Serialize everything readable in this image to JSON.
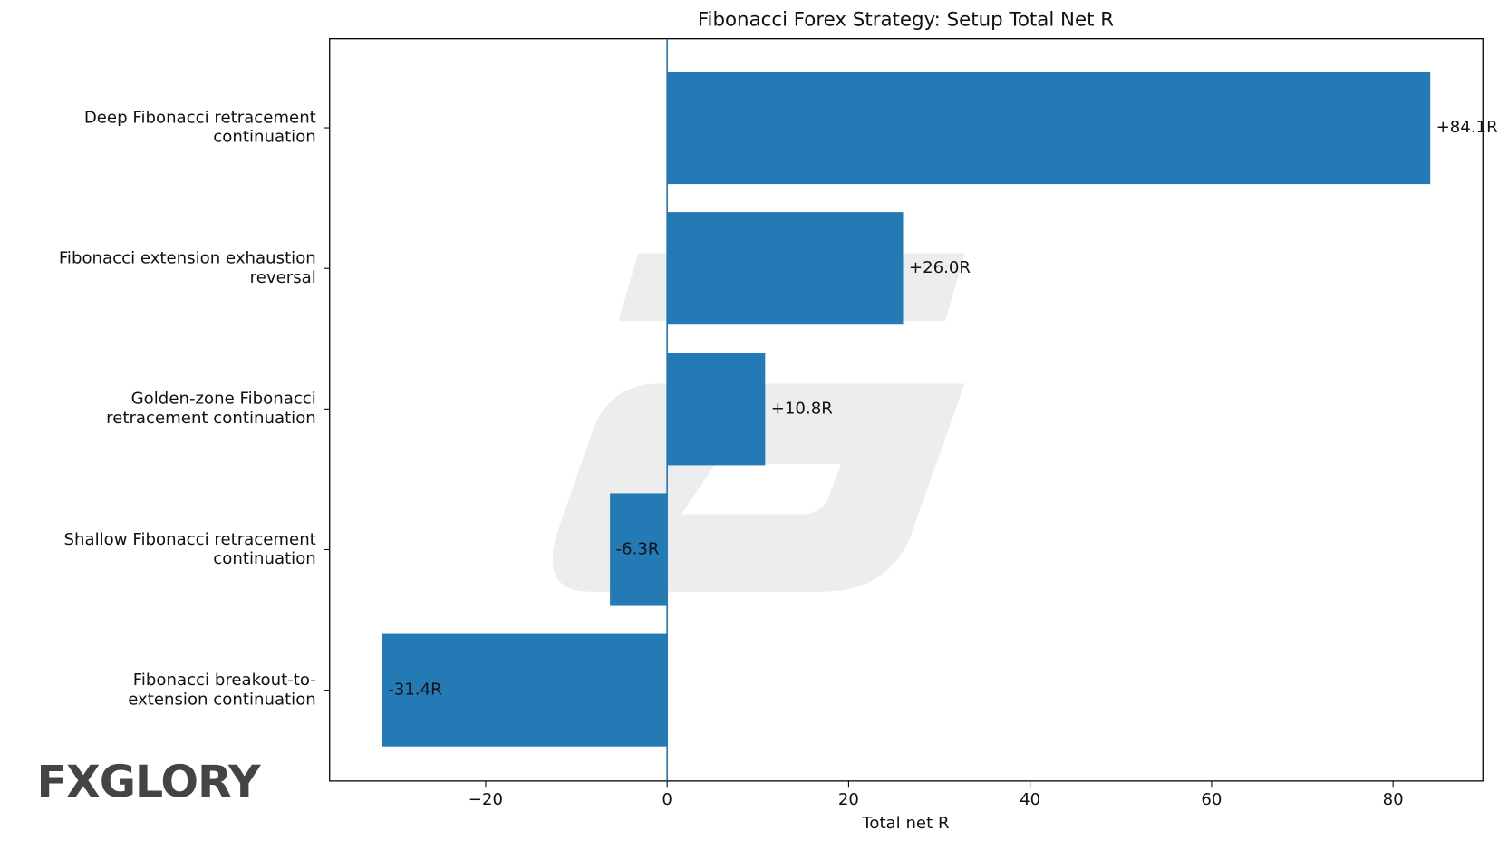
{
  "chart_data": {
    "type": "barh",
    "title": "Fibonacci Forex Strategy: Setup Total Net R",
    "x_label": "Total net R",
    "categories": [
      "Deep Fibonacci retracement\ncontinuation",
      "Fibonacci extension exhaustion\nreversal",
      "Golden-zone Fibonacci\nretracement continuation",
      "Shallow Fibonacci retracement\ncontinuation",
      "Fibonacci breakout-to-\nextension continuation"
    ],
    "values": [
      84.1,
      26.0,
      10.8,
      -6.3,
      -31.4
    ],
    "value_labels": [
      "+84.1R",
      "+26.0R",
      "+10.8R",
      "-6.3R",
      "-31.4R"
    ],
    "color": "#1f77b4",
    "xlim": [
      -37.2,
      89.9
    ],
    "xticks": [
      {
        "value": -20,
        "label": "−20"
      },
      0,
      20,
      40,
      60,
      80
    ],
    "grid": false,
    "logo": "FXGLORY"
  }
}
